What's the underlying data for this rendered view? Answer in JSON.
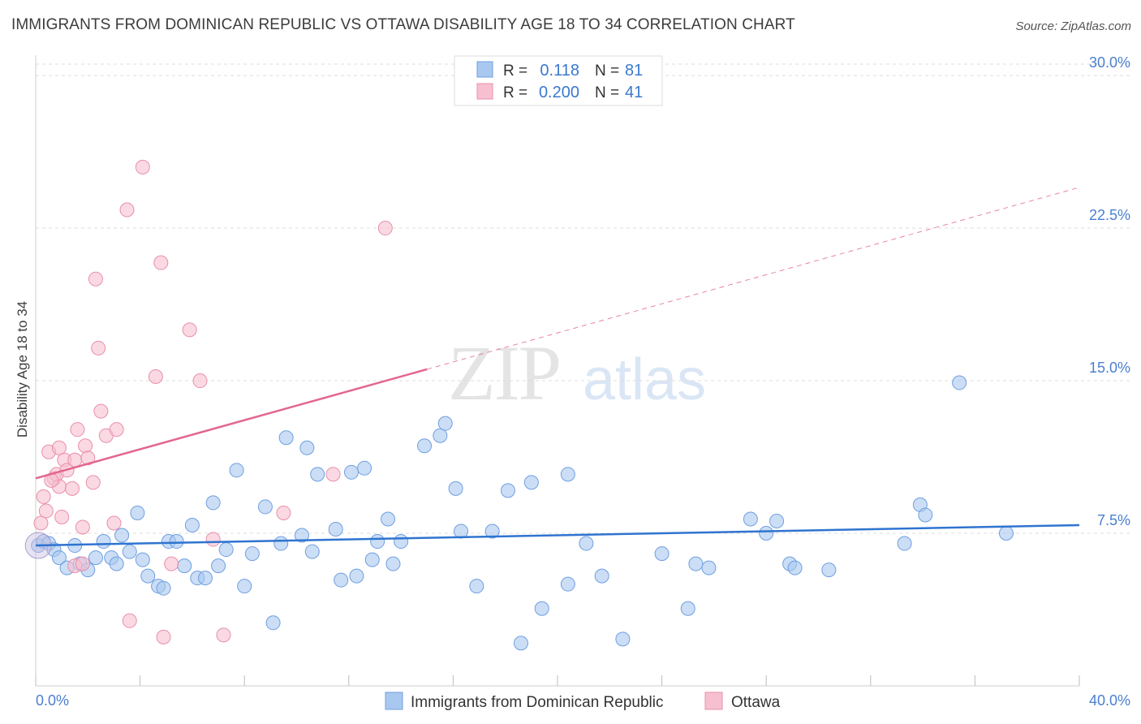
{
  "header": {
    "title": "IMMIGRANTS FROM DOMINICAN REPUBLIC VS OTTAWA DISABILITY AGE 18 TO 34 CORRELATION CHART",
    "source": "Source: ZipAtlas.com"
  },
  "watermark": {
    "zip": "ZIP",
    "atlas": "atlas"
  },
  "colors": {
    "blue_fill": "#a9c8f0",
    "blue_stroke": "#6f9fe0",
    "blue_line": "#2f74d0",
    "pink_fill": "#f7c0d0",
    "pink_stroke": "#e98fab",
    "pink_line": "#e2668f",
    "grid": "#dddddd",
    "tick_text": "#4a7fd0"
  },
  "chart_data": {
    "type": "scatter",
    "title": "IMMIGRANTS FROM DOMINICAN REPUBLIC VS OTTAWA DISABILITY AGE 18 TO 34 CORRELATION CHART",
    "xlabel": "",
    "ylabel": "Disability Age 18 to 34",
    "xlim": [
      0,
      40
    ],
    "ylim": [
      0,
      31
    ],
    "x_tick_labels": {
      "min": "0.0%",
      "max": "40.0%"
    },
    "y_ticks": [
      7.5,
      15.0,
      22.5,
      30.0
    ],
    "y_tick_labels": [
      "7.5%",
      "15.0%",
      "22.5%",
      "30.0%"
    ],
    "grid": true,
    "legend": {
      "placement": "top-center",
      "rows": [
        {
          "r_label": "R =",
          "r_value": "0.118",
          "n_label": "N =",
          "n_value": "81"
        },
        {
          "r_label": "R =",
          "r_value": "0.200",
          "n_label": "N =",
          "n_value": "41"
        }
      ]
    },
    "series": [
      {
        "name": "Immigrants from Dominican Republic",
        "color": "blue",
        "trend": {
          "x0": 0,
          "y0": 6.9,
          "x1": 40,
          "y1": 7.9,
          "dashed_from": null
        },
        "points": [
          [
            0.1,
            6.9
          ],
          [
            0.3,
            7.1
          ],
          [
            0.5,
            7.0
          ],
          [
            0.7,
            6.7
          ],
          [
            0.9,
            6.3
          ],
          [
            1.2,
            5.8
          ],
          [
            1.5,
            6.9
          ],
          [
            1.7,
            6.0
          ],
          [
            2.0,
            5.7
          ],
          [
            2.3,
            6.3
          ],
          [
            2.6,
            7.1
          ],
          [
            2.9,
            6.3
          ],
          [
            3.1,
            6.0
          ],
          [
            3.3,
            7.4
          ],
          [
            3.6,
            6.6
          ],
          [
            3.9,
            8.5
          ],
          [
            4.1,
            6.2
          ],
          [
            4.3,
            5.4
          ],
          [
            4.7,
            4.9
          ],
          [
            4.9,
            4.8
          ],
          [
            5.1,
            7.1
          ],
          [
            5.4,
            7.1
          ],
          [
            5.7,
            5.9
          ],
          [
            6.0,
            7.9
          ],
          [
            6.2,
            5.3
          ],
          [
            6.5,
            5.3
          ],
          [
            6.8,
            9.0
          ],
          [
            7.0,
            5.9
          ],
          [
            7.3,
            6.7
          ],
          [
            7.7,
            10.6
          ],
          [
            8.0,
            4.9
          ],
          [
            8.3,
            6.5
          ],
          [
            8.8,
            8.8
          ],
          [
            9.1,
            3.1
          ],
          [
            9.4,
            7.0
          ],
          [
            9.6,
            12.2
          ],
          [
            10.2,
            7.4
          ],
          [
            10.4,
            11.7
          ],
          [
            10.6,
            6.6
          ],
          [
            10.8,
            10.4
          ],
          [
            11.5,
            7.7
          ],
          [
            11.7,
            5.2
          ],
          [
            12.1,
            10.5
          ],
          [
            12.3,
            5.4
          ],
          [
            12.6,
            10.7
          ],
          [
            12.9,
            6.2
          ],
          [
            13.1,
            7.1
          ],
          [
            13.5,
            8.2
          ],
          [
            13.7,
            6.0
          ],
          [
            14.0,
            7.1
          ],
          [
            14.9,
            11.8
          ],
          [
            15.5,
            12.3
          ],
          [
            15.7,
            12.9
          ],
          [
            16.1,
            9.7
          ],
          [
            16.3,
            7.6
          ],
          [
            16.9,
            4.9
          ],
          [
            17.5,
            7.6
          ],
          [
            18.1,
            9.6
          ],
          [
            18.6,
            2.1
          ],
          [
            19.0,
            10.0
          ],
          [
            19.4,
            3.8
          ],
          [
            20.4,
            5.0
          ],
          [
            20.4,
            10.4
          ],
          [
            21.1,
            7.0
          ],
          [
            21.7,
            5.4
          ],
          [
            22.5,
            2.3
          ],
          [
            24.0,
            6.5
          ],
          [
            25.0,
            3.8
          ],
          [
            25.3,
            6.0
          ],
          [
            25.8,
            5.8
          ],
          [
            27.4,
            8.2
          ],
          [
            28.0,
            7.5
          ],
          [
            28.4,
            8.1
          ],
          [
            28.9,
            6.0
          ],
          [
            29.1,
            5.8
          ],
          [
            30.4,
            5.7
          ],
          [
            33.3,
            7.0
          ],
          [
            33.9,
            8.9
          ],
          [
            34.1,
            8.4
          ],
          [
            35.4,
            14.9
          ],
          [
            37.2,
            7.5
          ]
        ]
      },
      {
        "name": "Ottawa",
        "color": "pink",
        "trend": {
          "x0": 0,
          "y0": 10.2,
          "x1": 40,
          "y1": 24.5,
          "solid_to_x": 15
        },
        "points": [
          [
            0.2,
            8.0
          ],
          [
            0.3,
            9.3
          ],
          [
            0.4,
            8.6
          ],
          [
            0.5,
            11.5
          ],
          [
            0.7,
            10.2
          ],
          [
            0.8,
            10.4
          ],
          [
            0.9,
            9.8
          ],
          [
            0.9,
            11.7
          ],
          [
            1.0,
            8.3
          ],
          [
            1.1,
            11.1
          ],
          [
            1.2,
            10.6
          ],
          [
            1.4,
            9.7
          ],
          [
            1.5,
            11.1
          ],
          [
            1.6,
            12.6
          ],
          [
            1.8,
            7.8
          ],
          [
            1.9,
            11.8
          ],
          [
            2.0,
            11.2
          ],
          [
            2.2,
            10.0
          ],
          [
            2.4,
            16.6
          ],
          [
            2.5,
            13.5
          ],
          [
            2.7,
            12.3
          ],
          [
            3.0,
            8.0
          ],
          [
            3.1,
            12.6
          ],
          [
            3.5,
            23.4
          ],
          [
            4.1,
            25.5
          ],
          [
            4.6,
            15.2
          ],
          [
            4.8,
            20.8
          ],
          [
            5.2,
            6.0
          ],
          [
            5.9,
            17.5
          ],
          [
            6.3,
            15.0
          ],
          [
            6.8,
            7.2
          ],
          [
            7.2,
            2.5
          ],
          [
            9.5,
            8.5
          ],
          [
            11.4,
            10.4
          ],
          [
            13.4,
            22.5
          ],
          [
            3.6,
            3.2
          ],
          [
            4.9,
            2.4
          ],
          [
            1.5,
            5.9
          ],
          [
            1.8,
            6.0
          ],
          [
            0.6,
            10.1
          ],
          [
            2.3,
            20.0
          ]
        ]
      }
    ]
  },
  "bottom_legend": {
    "items": [
      "Immigrants from Dominican Republic",
      "Ottawa"
    ]
  }
}
